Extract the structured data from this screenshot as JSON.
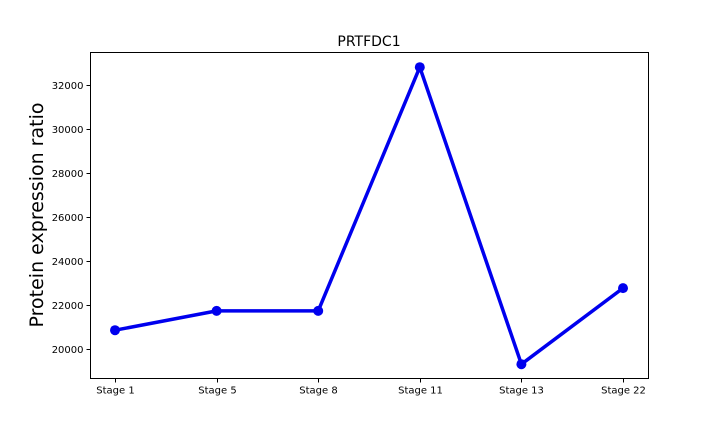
{
  "chart_data": {
    "type": "line",
    "title": "PRTFDC1",
    "xlabel": "",
    "ylabel": "Protein expression ratio",
    "categories": [
      "Stage 1",
      "Stage 5",
      "Stage 8",
      "Stage 11",
      "Stage 13",
      "Stage 22"
    ],
    "series": [
      {
        "values": [
          20850,
          21730,
          21730,
          32830,
          19300,
          22770
        ],
        "color": "#0000ee",
        "marker": "circle"
      }
    ],
    "yticks": [
      20000,
      22000,
      24000,
      26000,
      28000,
      30000,
      32000
    ],
    "ylim": [
      18650,
      33500
    ],
    "grid": false,
    "legend": "none"
  }
}
